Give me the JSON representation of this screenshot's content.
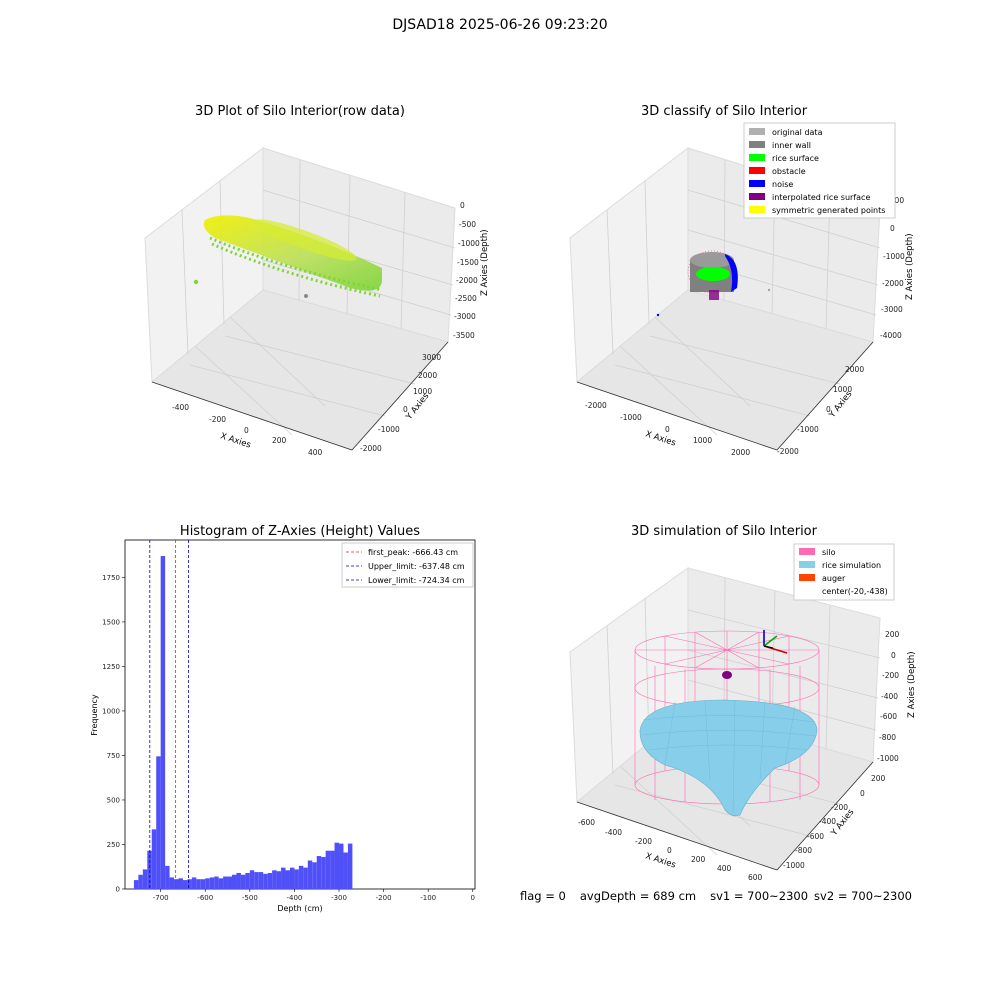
{
  "suptitle": "DJSAD18 2025-06-26 09:23:20",
  "status": {
    "flag": "flag = 0",
    "avg_depth": "avgDepth = 689 cm",
    "sv1": "sv1 = 700~2300",
    "sv2": "sv2 = 700~2300"
  },
  "colors": {
    "raw_green": "#7fd43a",
    "raw_yellow": "#f0f000",
    "hist_bar": "#5050f8",
    "peak_line": "#d62728",
    "limit_line": "#0000cc",
    "silo": "#ff69b4",
    "rice_simulation": "#87ceeb",
    "auger": "#ff4500"
  },
  "panels": {
    "raw": {
      "title": "3D Plot of Silo Interior(row data)",
      "xlabel": "X Axies",
      "ylabel": "Y Axies",
      "zlabel": "Z Axies (Depth)",
      "xticks": [
        "-400",
        "-200",
        "0",
        "200",
        "400"
      ],
      "yticks": [
        "-2000",
        "-1000",
        "0",
        "1000",
        "2000",
        "3000"
      ],
      "zticks": [
        "0",
        "-500",
        "-1000",
        "-1500",
        "-2000",
        "-2500",
        "-3000",
        "-3500"
      ]
    },
    "classify": {
      "title": "3D classify of Silo Interior",
      "xlabel": "X Axies",
      "ylabel": "Y Axies",
      "zlabel": "Z Axies (Depth)",
      "xticks": [
        "-2000",
        "-1000",
        "0",
        "1000",
        "2000"
      ],
      "yticks": [
        "-2000",
        "-1000",
        "0",
        "1000",
        "2000"
      ],
      "zticks": [
        "1000",
        "0",
        "-1000",
        "-2000",
        "-3000",
        "-4000"
      ],
      "legend": [
        {
          "label": "original data",
          "color": "#b0b0b0"
        },
        {
          "label": "inner wall",
          "color": "#808080"
        },
        {
          "label": "rice surface",
          "color": "#00ff00"
        },
        {
          "label": "obstacle",
          "color": "#ff0000"
        },
        {
          "label": "noise",
          "color": "#0000ff"
        },
        {
          "label": "interpolated rice surface",
          "color": "#800080"
        },
        {
          "label": "symmetric generated points",
          "color": "#ffff00"
        }
      ]
    },
    "simulation": {
      "title": "3D simulation of Silo Interior",
      "xlabel": "X Axies",
      "ylabel": "Y Axies",
      "zlabel": "Z Axies (Depth)",
      "xticks": [
        "-600",
        "-400",
        "-200",
        "0",
        "200",
        "400",
        "600"
      ],
      "yticks": [
        "-1000",
        "-800",
        "-600",
        "-400",
        "-200",
        "0",
        "200"
      ],
      "zticks": [
        "200",
        "0",
        "-200",
        "-400",
        "-600",
        "-800",
        "-1000"
      ],
      "legend": [
        {
          "label": "silo",
          "color": "#ff69b4"
        },
        {
          "label": "rice simulation",
          "color": "#87ceeb"
        },
        {
          "label": "auger",
          "color": "#ff4500"
        },
        {
          "label": "center(-20,-438)",
          "color": ""
        }
      ]
    }
  },
  "chart_data": [
    {
      "type": "scatter",
      "title": "3D Plot of Silo Interior(row data)",
      "xlabel": "X Axies",
      "ylabel": "Y Axies",
      "zlabel": "Z Axies (Depth)",
      "xlim": [
        -500,
        500
      ],
      "ylim": [
        -2200,
        3200
      ],
      "zlim": [
        -3700,
        100
      ]
    },
    {
      "type": "scatter",
      "title": "3D classify of Silo Interior",
      "xlabel": "X Axies",
      "ylabel": "Y Axies",
      "zlabel": "Z Axies (Depth)",
      "xlim": [
        -2500,
        2500
      ],
      "ylim": [
        -2500,
        2500
      ],
      "zlim": [
        -4200,
        1200
      ]
    },
    {
      "type": "bar",
      "title": "Histogram of Z-Axies (Height) Values",
      "xlabel": "Depth (cm)",
      "ylabel": "Frequency",
      "xlim": [
        -780,
        5
      ],
      "ylim": [
        0,
        1960
      ],
      "xticks": [
        -700,
        -600,
        -500,
        -400,
        -300,
        -200,
        -100,
        0
      ],
      "yticks": [
        0,
        250,
        500,
        750,
        1000,
        1250,
        1500,
        1750
      ],
      "bin_start": -760,
      "bin_width": 10.0,
      "values": [
        50,
        80,
        110,
        215,
        335,
        745,
        1870,
        130,
        65,
        55,
        60,
        50,
        55,
        65,
        55,
        55,
        60,
        65,
        70,
        60,
        70,
        70,
        80,
        90,
        80,
        90,
        105,
        95,
        95,
        85,
        90,
        105,
        100,
        120,
        105,
        120,
        110,
        130,
        120,
        160,
        150,
        185,
        180,
        215,
        215,
        260,
        255,
        205,
        255
      ],
      "lines": [
        {
          "name": "first_peak: -666.43 cm",
          "x": -666.43,
          "color": "#d62728"
        },
        {
          "name": "Upper_limit: -637.48 cm",
          "x": -637.48,
          "color": "#0000cc"
        },
        {
          "name": "Lower_limit: -724.34 cm",
          "x": -724.34,
          "color": "#0000cc"
        }
      ]
    },
    {
      "type": "area",
      "title": "3D simulation of Silo Interior",
      "xlabel": "X Axies",
      "ylabel": "Y Axies",
      "zlabel": "Z Axies (Depth)",
      "xlim": [
        -700,
        700
      ],
      "ylim": [
        -1100,
        300
      ],
      "zlim": [
        -1050,
        300
      ]
    }
  ]
}
